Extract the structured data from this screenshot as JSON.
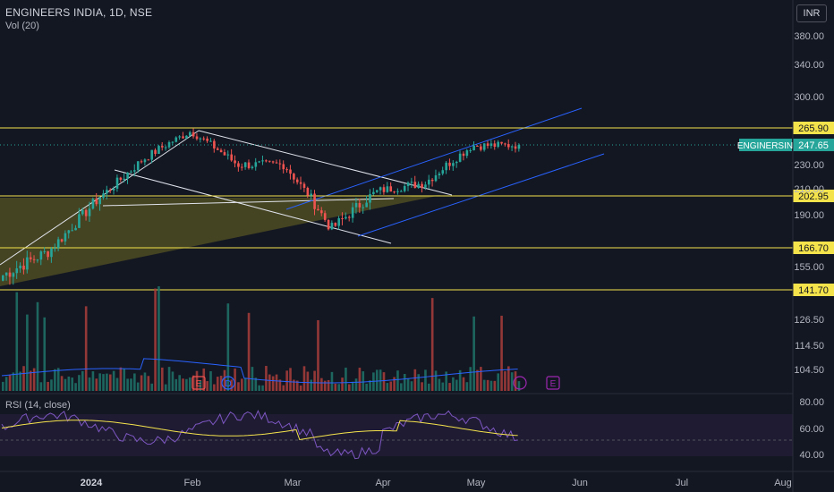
{
  "header": {
    "title": "ENGINEERS INDIA, 1D, NSE",
    "volume_label": "Vol (20)",
    "currency": "INR"
  },
  "price_axis": {
    "ticks": [
      "380.00",
      "340.00",
      "300.00",
      "230.00",
      "210.00",
      "190.00",
      "155.00",
      "126.50",
      "114.50",
      "104.50"
    ],
    "levels": [
      {
        "label": "265.90",
        "kind": "yellow"
      },
      {
        "label": "202.95",
        "kind": "yellow"
      },
      {
        "label": "166.70",
        "kind": "yellow"
      },
      {
        "label": "141.70",
        "kind": "yellow"
      }
    ],
    "current": {
      "symbol": "ENGINERSIN",
      "price": "247.65"
    }
  },
  "rsi": {
    "label": "RSI (14, close)",
    "ticks": [
      "80.00",
      "60.00",
      "40.00"
    ]
  },
  "time_axis": {
    "labels": [
      "2024",
      "Feb",
      "Mar",
      "Apr",
      "May",
      "Jun",
      "Jul",
      "Aug"
    ]
  },
  "event_markers": [
    "E",
    "D",
    "E"
  ],
  "colors": {
    "background": "#131722",
    "up": "#26a69a",
    "down": "#ef5350",
    "level": "#f5e34c",
    "channel": "#2962ff",
    "trendline": "#e0e3eb",
    "rsi": "#7e57c2",
    "rsi_ma": "#f5e34c",
    "current_badge": "#26a69a",
    "fill": "#5c5a24"
  },
  "chart_data": {
    "type": "candlestick",
    "title": "ENGINEERS INDIA, 1D, NSE",
    "xlabel": "",
    "ylabel": "",
    "horizontal_levels": [
      265.9,
      202.95,
      166.7,
      141.7
    ],
    "last_price": 247.65,
    "rsi_period": 14,
    "rsi_range": [
      40,
      80
    ],
    "approx_price_path": [
      {
        "x": "Dec",
        "y": 150
      },
      {
        "x": "Jan (early)",
        "y": 165
      },
      {
        "x": "Jan (mid)",
        "y": 200
      },
      {
        "x": "Jan (late)",
        "y": 235
      },
      {
        "x": "Feb (early)",
        "y": 262
      },
      {
        "x": "Feb (mid)",
        "y": 230
      },
      {
        "x": "Mar (early)",
        "y": 230
      },
      {
        "x": "Mar (late)",
        "y": 180
      },
      {
        "x": "Apr (early)",
        "y": 208
      },
      {
        "x": "Apr (late)",
        "y": 215
      },
      {
        "x": "May (early)",
        "y": 247
      },
      {
        "x": "May (mid)",
        "y": 247.65
      }
    ]
  }
}
